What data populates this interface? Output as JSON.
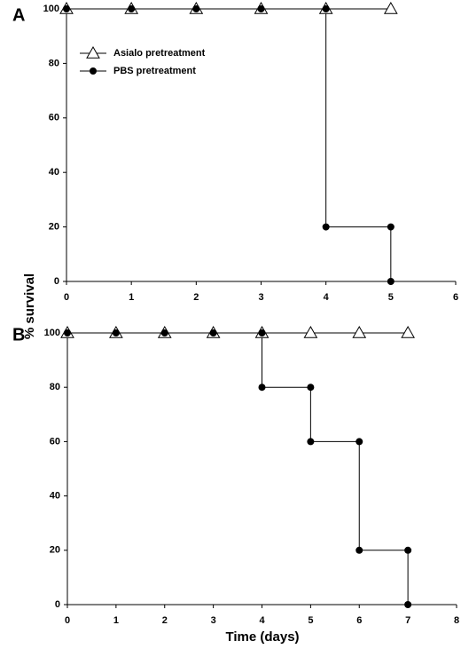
{
  "chart_data": [
    {
      "type": "line",
      "panel_label": "A",
      "ylabel": "% survival",
      "legend": "upper left",
      "xlim": [
        0,
        6
      ],
      "xticks": [
        0,
        1,
        2,
        3,
        4,
        5,
        6
      ],
      "ylim": [
        0,
        100
      ],
      "yticks": [
        0,
        20,
        40,
        60,
        80,
        100
      ],
      "series": [
        {
          "name": "Asialo pretreatment",
          "marker": "open-triangle",
          "color": "#000000",
          "x": [
            0,
            1,
            2,
            3,
            4,
            5
          ],
          "values": [
            100,
            100,
            100,
            100,
            100,
            100
          ]
        },
        {
          "name": "PBS pretreatment",
          "marker": "filled-circle",
          "color": "#000000",
          "x": [
            0,
            1,
            2,
            3,
            4,
            4,
            5,
            5
          ],
          "values": [
            100,
            100,
            100,
            100,
            100,
            20,
            20,
            0
          ]
        }
      ]
    },
    {
      "type": "line",
      "panel_label": "B",
      "xlabel": "Time (days)",
      "xlim": [
        0,
        8
      ],
      "xticks": [
        0,
        1,
        2,
        3,
        4,
        5,
        6,
        7,
        8
      ],
      "ylim": [
        0,
        100
      ],
      "yticks": [
        0,
        20,
        40,
        60,
        80,
        100
      ],
      "series": [
        {
          "marker": "open-triangle",
          "color": "#000000",
          "x": [
            0,
            1,
            2,
            3,
            4,
            5,
            6,
            7
          ],
          "values": [
            100,
            100,
            100,
            100,
            100,
            100,
            100,
            100
          ]
        },
        {
          "marker": "filled-circle",
          "color": "#000000",
          "x": [
            0,
            1,
            2,
            3,
            4,
            4,
            5,
            5,
            6,
            6,
            7,
            7
          ],
          "values": [
            100,
            100,
            100,
            100,
            100,
            80,
            80,
            60,
            60,
            20,
            20,
            0
          ]
        }
      ]
    }
  ]
}
